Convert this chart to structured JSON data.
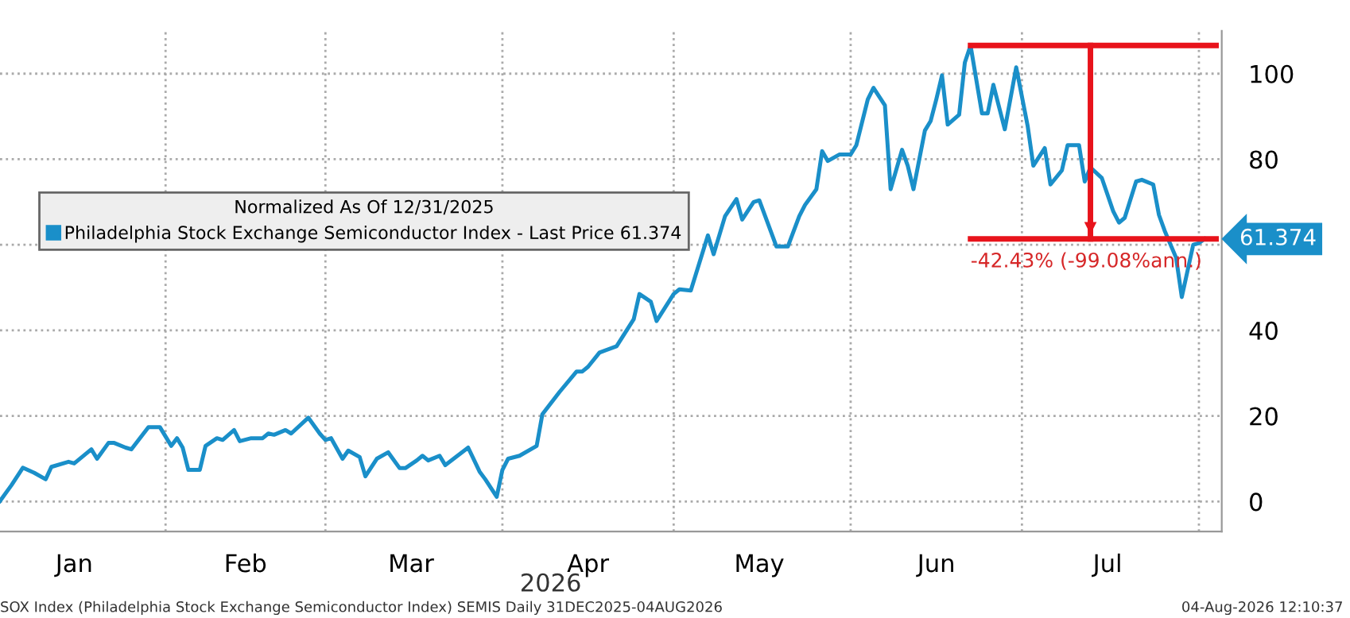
{
  "chart_data": {
    "type": "line",
    "legend_title": "Normalized As Of 12/31/2025",
    "legend": "left",
    "grid": true,
    "marker": "none",
    "line_style": "solid",
    "xlim": [
      "2026-01-03",
      "2026-08-05"
    ],
    "ylim": [
      -7,
      110
    ],
    "yticks": [
      0,
      20,
      40,
      {
        "value": 60,
        "label": null
      },
      80,
      100
    ],
    "xticks": [
      {
        "value": "2026-02-01",
        "label": null
      },
      {
        "value": "2026-03-01",
        "label": null
      },
      {
        "value": "2026-04-01",
        "label": null
      },
      {
        "value": "2026-05-01",
        "label": null
      },
      {
        "value": "2026-06-01",
        "label": null
      },
      {
        "value": "2026-07-01",
        "label": null
      },
      {
        "value": "2026-08-01",
        "label": null
      },
      {
        "value": "2026-01-16",
        "label": "Jan"
      },
      {
        "value": "2026-02-15",
        "label": "Feb"
      },
      {
        "value": "2026-03-16",
        "label": "Mar"
      },
      {
        "value": "2026-04-16",
        "label": "Apr"
      },
      {
        "value": "2026-05-16",
        "label": "May"
      },
      {
        "value": "2026-06-16",
        "label": "Jun"
      },
      {
        "value": "2026-07-16",
        "label": "Jul"
      }
    ],
    "series": [
      {
        "name": "Philadelphia Stock Exchange Semiconductor Index - Last Price 61.374",
        "color": "#1a8fc9",
        "x": [
          "2026-01-03",
          "2026-01-05",
          "2026-01-07",
          "2026-01-09",
          "2026-01-11",
          "2026-01-12",
          "2026-01-15",
          "2026-01-16",
          "2026-01-19",
          "2026-01-20",
          "2026-01-22",
          "2026-01-23",
          "2026-01-25",
          "2026-01-26",
          "2026-01-29",
          "2026-01-31",
          "2026-02-02",
          "2026-02-03",
          "2026-02-04",
          "2026-02-05",
          "2026-02-07",
          "2026-02-08",
          "2026-02-10",
          "2026-02-11",
          "2026-02-13",
          "2026-02-14",
          "2026-02-16",
          "2026-02-18",
          "2026-02-19",
          "2026-02-20",
          "2026-02-22",
          "2026-02-23",
          "2026-02-26",
          "2026-02-28",
          "2026-03-01",
          "2026-03-02",
          "2026-03-04",
          "2026-03-05",
          "2026-03-07",
          "2026-03-08",
          "2026-03-10",
          "2026-03-12",
          "2026-03-14",
          "2026-03-15",
          "2026-03-17",
          "2026-03-18",
          "2026-03-19",
          "2026-03-21",
          "2026-03-22",
          "2026-03-26",
          "2026-03-28",
          "2026-03-29",
          "2026-03-31",
          "2026-04-01",
          "2026-04-02",
          "2026-04-04",
          "2026-04-07",
          "2026-04-08",
          "2026-04-11",
          "2026-04-14",
          "2026-04-15",
          "2026-04-16",
          "2026-04-18",
          "2026-04-21",
          "2026-04-24",
          "2026-04-25",
          "2026-04-27",
          "2026-04-28",
          "2026-05-01",
          "2026-05-02",
          "2026-05-04",
          "2026-05-07",
          "2026-05-08",
          "2026-05-10",
          "2026-05-12",
          "2026-05-13",
          "2026-05-15",
          "2026-05-16",
          "2026-05-19",
          "2026-05-21",
          "2026-05-23",
          "2026-05-24",
          "2026-05-26",
          "2026-05-27",
          "2026-05-28",
          "2026-05-30",
          "2026-06-01",
          "2026-06-02",
          "2026-06-04",
          "2026-06-05",
          "2026-06-07",
          "2026-06-08",
          "2026-06-10",
          "2026-06-11",
          "2026-06-12",
          "2026-06-14",
          "2026-06-15",
          "2026-06-16",
          "2026-06-17",
          "2026-06-18",
          "2026-06-20",
          "2026-06-21",
          "2026-06-22",
          "2026-06-24",
          "2026-06-25",
          "2026-06-26",
          "2026-06-28",
          "2026-06-30",
          "2026-07-02",
          "2026-07-03",
          "2026-07-05",
          "2026-07-06",
          "2026-07-08",
          "2026-07-09",
          "2026-07-11",
          "2026-07-12",
          "2026-07-13",
          "2026-07-15",
          "2026-07-17",
          "2026-07-18",
          "2026-07-19",
          "2026-07-21",
          "2026-07-22",
          "2026-07-24",
          "2026-07-25",
          "2026-07-26",
          "2026-07-28",
          "2026-07-29",
          "2026-07-31",
          "2026-08-01",
          "2026-08-02"
        ],
        "values": [
          0.1,
          3.8,
          7.9,
          6.7,
          5.2,
          8.1,
          9.3,
          8.9,
          12.2,
          10,
          13.7,
          13.7,
          12.6,
          12.2,
          17.4,
          17.4,
          13,
          14.8,
          12.6,
          7.4,
          7.4,
          13,
          14.8,
          14.4,
          16.7,
          14.1,
          14.8,
          14.8,
          15.9,
          15.6,
          16.7,
          15.9,
          19.6,
          15.9,
          14.4,
          14.8,
          10,
          11.9,
          10.4,
          5.9,
          10,
          11.5,
          7.8,
          7.8,
          9.6,
          10.7,
          9.6,
          10.7,
          8.5,
          12.6,
          7,
          5.2,
          1.1,
          7.4,
          10,
          10.7,
          13,
          20.4,
          25.6,
          30.4,
          30.4,
          31.5,
          34.8,
          36.3,
          42.6,
          48.5,
          46.7,
          42.2,
          48.5,
          49.6,
          49.3,
          62.2,
          57.8,
          66.7,
          70.7,
          65.9,
          70,
          70.4,
          59.6,
          59.6,
          66.7,
          69.3,
          73,
          81.9,
          79.6,
          81.1,
          81.1,
          83.3,
          94,
          96.7,
          92.6,
          73,
          82.2,
          78.5,
          73,
          86.7,
          88.9,
          94,
          99.6,
          88.1,
          90.4,
          102.6,
          106.6,
          90.7,
          90.7,
          97.4,
          87,
          101.5,
          87.8,
          78.5,
          82.6,
          74.1,
          77.4,
          83.3,
          83.3,
          74.8,
          78.1,
          75.6,
          67.8,
          65.2,
          66.3,
          74.8,
          75.2,
          74.1,
          67,
          63.3,
          57,
          47.8,
          60,
          60.4,
          61.374
        ]
      },
      {
        "color": "#e8131b",
        "x": [
          "2026-06-22",
          "2026-08-04"
        ],
        "values": [
          106.6,
          106.6
        ]
      },
      {
        "color": "#e8131b",
        "x": [
          "2026-06-22",
          "2026-08-04"
        ],
        "values": [
          61.4,
          61.4
        ]
      },
      {
        "color": "#e8131b",
        "x": [
          "2026-07-13",
          "2026-07-13"
        ],
        "values": [
          106.6,
          61.4
        ]
      }
    ],
    "annotations": [
      {
        "text": "-42.43% (-99.08%ann.)",
        "x": "2026-06-22",
        "y": 61.374
      },
      {
        "text": "61.374",
        "x": "2026-08-02",
        "y": 61.374
      },
      "2026",
      "SOX Index (Philadelphia Stock Exchange Semiconductor Index) SEMIS Daily 31DEC2025-04AUG2026",
      "04-Aug-2026 12:10:37"
    ]
  }
}
